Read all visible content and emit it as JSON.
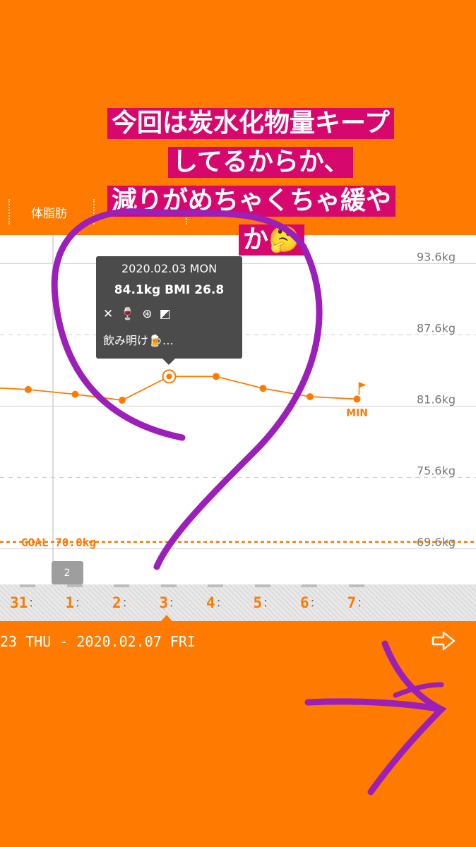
{
  "tabbar": {
    "active_tab": "体脂肪"
  },
  "chart": {
    "y_ticks": [
      "93.6kg",
      "87.6kg",
      "81.6kg",
      "75.6kg",
      "69.6kg"
    ],
    "goal_label": "GOAL 70.0kg",
    "min_label": "MIN",
    "week_badge": "2"
  },
  "chart_data": {
    "type": "line",
    "x": [
      "31",
      "1",
      "2",
      "3",
      "4",
      "5",
      "6",
      "7"
    ],
    "series": [
      {
        "values": [
          83.0,
          82.6,
          82.1,
          84.1,
          84.1,
          83.1,
          82.4,
          82.2
        ]
      }
    ],
    "ylim": [
      66.6,
      96.0
    ],
    "y_ticks": [
      93.6,
      87.6,
      81.6,
      75.6,
      69.6
    ],
    "goal": 70.0,
    "grid": true,
    "selected_index": 3
  },
  "tooltip": {
    "date": "2020.02.03 MON",
    "main": "84.1kg  BMI 26.8",
    "memo": "飲み明け🍺…",
    "icons": [
      "fork-knife-icon",
      "wine-glass-icon",
      "pill-icon",
      "exercise-icon"
    ]
  },
  "datestrip": {
    "days": [
      "31",
      "1",
      "2",
      "3",
      "4",
      "5",
      "6",
      "7"
    ],
    "range": "23 THU - 2020.02.07 FRI"
  },
  "caption": {
    "line1": "今回は炭水化物量キープ",
    "line2": "してるからか、",
    "line3": "減りがめちゃくちゃ緩や",
    "line4": "か🤔"
  },
  "colors": {
    "accent": "#ff7a00",
    "caption_bg": "#d6086e",
    "scribble": "#9b1fb8"
  }
}
